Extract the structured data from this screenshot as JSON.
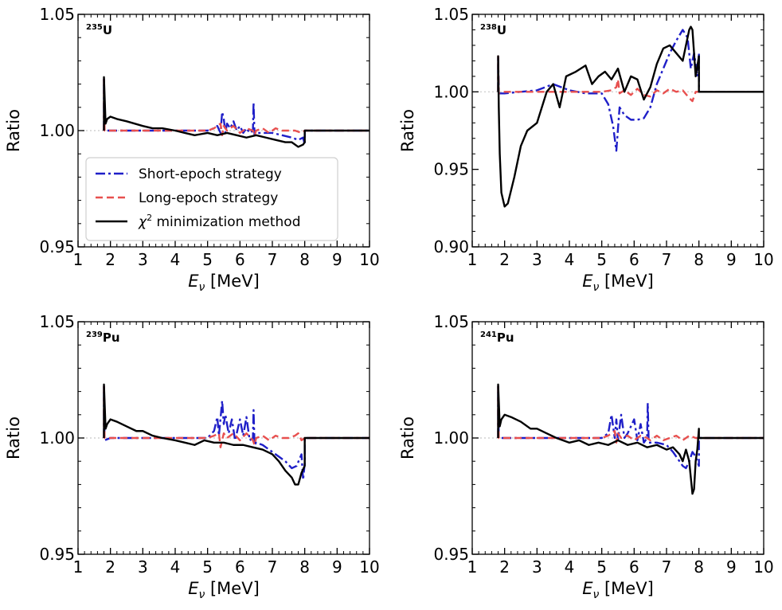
{
  "legend": [
    {
      "key": "short",
      "label": "Short-epoch strategy",
      "color": "#1f1fc8",
      "dash": "dashdot"
    },
    {
      "key": "long",
      "label": "Long-epoch strategy",
      "color": "#e8504f",
      "dash": "dashed"
    },
    {
      "key": "chi2",
      "label_prefix": "χ",
      "label_sup": "2",
      "label_suffix": " minimization method",
      "color": "#000000",
      "dash": "solid"
    }
  ],
  "chart_data": [
    {
      "type": "line",
      "title_sup": "235",
      "title_main": "U",
      "xlabel_main": "E",
      "xlabel_sub": "ν",
      "xlabel_unit": " [MeV]",
      "ylabel": "Ratio",
      "xlim": [
        1,
        10
      ],
      "ylim": [
        0.95,
        1.05
      ],
      "xticks": [
        1,
        2,
        3,
        4,
        5,
        6,
        7,
        8,
        9,
        10
      ],
      "yticks": [
        0.95,
        1.0,
        1.05
      ],
      "ytick_labels": [
        "0.95",
        "1.00",
        "1.05"
      ],
      "show_legend": true,
      "series": [
        {
          "key": "short",
          "x": [
            1.8,
            1.8,
            1.82,
            2.0,
            2.5,
            3.0,
            3.5,
            4.0,
            4.5,
            5.0,
            5.2,
            5.3,
            5.4,
            5.45,
            5.5,
            5.55,
            5.6,
            5.7,
            5.8,
            5.9,
            6.0,
            6.1,
            6.2,
            6.3,
            6.4,
            6.42,
            6.45,
            6.5,
            6.7,
            7.0,
            7.3,
            7.6,
            7.8,
            7.95,
            8.0,
            8.0,
            10.0
          ],
          "y": [
            1.0,
            1.023,
            1.0,
            1.0,
            1.0,
            1.0,
            1.0,
            1.0,
            1.0,
            1.0,
            1.001,
            1.002,
            0.999,
            1.008,
            1.005,
            0.999,
            1.003,
            1.001,
            1.004,
            1.0,
            1.002,
            0.999,
            1.001,
            0.999,
            1.0,
            1.012,
            0.998,
            0.999,
            0.999,
            0.999,
            0.998,
            0.997,
            0.996,
            0.997,
            0.994,
            1.0,
            1.0
          ]
        },
        {
          "key": "long",
          "x": [
            1.8,
            1.8,
            1.82,
            2.0,
            2.5,
            3.0,
            3.5,
            4.0,
            4.5,
            5.0,
            5.2,
            5.4,
            5.45,
            5.5,
            5.6,
            5.8,
            6.0,
            6.2,
            6.4,
            6.45,
            6.5,
            6.7,
            6.9,
            7.1,
            7.3,
            7.5,
            7.7,
            7.9,
            8.0,
            10.0
          ],
          "y": [
            1.0,
            1.023,
            1.0,
            1.0,
            1.0,
            1.0,
            1.0,
            1.0,
            1.0,
            1.0,
            1.001,
            1.003,
            0.998,
            1.002,
            1.0,
            1.002,
            0.999,
            1.001,
            1.0,
            0.998,
            1.0,
            1.001,
            0.999,
            1.001,
            1.0,
            1.0,
            1.0,
            0.999,
            1.0,
            1.0
          ]
        },
        {
          "key": "chi2",
          "x": [
            1.8,
            1.8,
            1.85,
            1.9,
            2.0,
            2.2,
            2.5,
            3.0,
            3.3,
            3.6,
            4.0,
            4.3,
            4.6,
            5.0,
            5.3,
            5.6,
            5.9,
            6.2,
            6.5,
            6.8,
            7.1,
            7.4,
            7.6,
            7.8,
            7.95,
            8.0,
            8.0,
            10.0
          ],
          "y": [
            1.0,
            1.023,
            1.003,
            1.005,
            1.006,
            1.005,
            1.004,
            1.002,
            1.001,
            1.001,
            1.0,
            0.999,
            0.998,
            0.999,
            0.998,
            0.999,
            0.998,
            0.997,
            0.998,
            0.997,
            0.996,
            0.995,
            0.995,
            0.993,
            0.994,
            0.995,
            1.0,
            1.0
          ]
        }
      ]
    },
    {
      "type": "line",
      "title_sup": "238",
      "title_main": "U",
      "xlabel_main": "E",
      "xlabel_sub": "ν",
      "xlabel_unit": " [MeV]",
      "ylabel": "Ratio",
      "xlim": [
        1,
        10
      ],
      "ylim": [
        0.9,
        1.05
      ],
      "xticks": [
        1,
        2,
        3,
        4,
        5,
        6,
        7,
        8,
        9,
        10
      ],
      "yticks": [
        0.9,
        0.95,
        1.0,
        1.05
      ],
      "ytick_labels": [
        "0.90",
        "0.95",
        "1.00",
        "1.05"
      ],
      "show_legend": false,
      "series": [
        {
          "key": "short",
          "x": [
            1.8,
            1.8,
            1.82,
            2.0,
            2.5,
            3.0,
            3.5,
            4.0,
            4.5,
            5.0,
            5.2,
            5.35,
            5.45,
            5.55,
            5.7,
            5.9,
            6.1,
            6.3,
            6.5,
            6.7,
            6.9,
            7.1,
            7.3,
            7.5,
            7.65,
            7.75,
            7.85,
            7.95,
            8.0,
            8.0,
            10.0
          ],
          "y": [
            1.0,
            1.023,
            0.999,
            0.999,
            1.0,
            1.001,
            1.005,
            1.001,
            0.999,
            0.999,
            0.992,
            0.978,
            0.962,
            0.99,
            0.985,
            0.982,
            0.982,
            0.983,
            0.99,
            1.005,
            1.015,
            1.025,
            1.033,
            1.04,
            1.035,
            1.015,
            1.025,
            1.01,
            1.025,
            1.0,
            1.0
          ]
        },
        {
          "key": "long",
          "x": [
            1.8,
            1.8,
            1.82,
            2.0,
            2.5,
            3.0,
            3.5,
            4.0,
            4.5,
            5.0,
            5.3,
            5.45,
            5.5,
            5.55,
            5.7,
            5.9,
            6.1,
            6.3,
            6.5,
            6.7,
            6.9,
            7.1,
            7.3,
            7.5,
            7.7,
            7.8,
            7.9,
            8.0,
            10.0
          ],
          "y": [
            1.0,
            1.023,
            0.999,
            1.0,
            1.0,
            1.0,
            1.0,
            1.0,
            1.0,
            1.0,
            1.001,
            1.003,
            1.008,
            0.999,
            1.001,
            0.998,
            1.002,
            0.998,
            0.997,
            1.001,
            0.999,
            1.002,
            1.0,
            1.001,
            0.996,
            0.994,
            1.0,
            1.0,
            1.0
          ]
        },
        {
          "key": "chi2",
          "x": [
            1.8,
            1.8,
            1.82,
            1.85,
            1.9,
            2.0,
            2.1,
            2.3,
            2.5,
            2.7,
            3.0,
            3.3,
            3.5,
            3.7,
            3.9,
            4.2,
            4.5,
            4.7,
            4.9,
            5.1,
            5.3,
            5.5,
            5.7,
            5.9,
            6.1,
            6.3,
            6.5,
            6.7,
            6.9,
            7.1,
            7.3,
            7.5,
            7.6,
            7.7,
            7.75,
            7.8,
            7.9,
            8.0,
            8.0,
            10.0
          ],
          "y": [
            1.0,
            1.023,
            0.99,
            0.96,
            0.935,
            0.926,
            0.928,
            0.945,
            0.965,
            0.975,
            0.98,
            1.0,
            1.005,
            0.99,
            1.01,
            1.013,
            1.017,
            1.005,
            1.01,
            1.013,
            1.008,
            1.015,
            1.0,
            1.01,
            1.008,
            0.995,
            1.003,
            1.018,
            1.028,
            1.03,
            1.025,
            1.02,
            1.03,
            1.04,
            1.042,
            1.04,
            1.01,
            1.023,
            1.0,
            1.0
          ]
        }
      ]
    },
    {
      "type": "line",
      "title_sup": "239",
      "title_main": "Pu",
      "xlabel_main": "E",
      "xlabel_sub": "ν",
      "xlabel_unit": " [MeV]",
      "ylabel": "Ratio",
      "xlim": [
        1,
        10
      ],
      "ylim": [
        0.95,
        1.05
      ],
      "xticks": [
        1,
        2,
        3,
        4,
        5,
        6,
        7,
        8,
        9,
        10
      ],
      "yticks": [
        0.95,
        1.0,
        1.05
      ],
      "ytick_labels": [
        "0.95",
        "1.00",
        "1.05"
      ],
      "show_legend": false,
      "series": [
        {
          "key": "short",
          "x": [
            1.8,
            1.8,
            1.82,
            2.0,
            2.5,
            3.0,
            3.5,
            4.0,
            4.5,
            5.0,
            5.2,
            5.3,
            5.35,
            5.45,
            5.5,
            5.55,
            5.65,
            5.75,
            5.85,
            6.0,
            6.1,
            6.2,
            6.3,
            6.4,
            6.42,
            6.45,
            6.5,
            6.7,
            7.0,
            7.2,
            7.4,
            7.6,
            7.75,
            7.9,
            7.95,
            8.0,
            8.0,
            10.0
          ],
          "y": [
            1.0,
            1.023,
            0.999,
            1.0,
            1.0,
            1.0,
            1.0,
            1.0,
            1.0,
            1.0,
            1.003,
            1.009,
            1.001,
            1.016,
            1.006,
            1.01,
            1.002,
            1.008,
            0.999,
            1.008,
            1.001,
            1.009,
            0.999,
            1.0,
            1.012,
            0.997,
            0.998,
            0.997,
            0.994,
            0.992,
            0.99,
            0.987,
            0.988,
            0.993,
            0.982,
            0.989,
            1.0,
            1.0
          ]
        },
        {
          "key": "long",
          "x": [
            1.8,
            1.8,
            1.82,
            2.0,
            2.5,
            3.0,
            3.5,
            4.0,
            4.5,
            5.0,
            5.2,
            5.35,
            5.4,
            5.5,
            5.6,
            5.8,
            6.0,
            6.2,
            6.4,
            6.45,
            6.5,
            6.7,
            6.9,
            7.1,
            7.3,
            7.5,
            7.7,
            7.8,
            7.9,
            8.0,
            10.0
          ],
          "y": [
            1.0,
            1.023,
            1.0,
            1.0,
            1.0,
            1.0,
            1.0,
            1.0,
            1.0,
            1.0,
            1.001,
            1.002,
            0.996,
            1.002,
            1.0,
            1.002,
            0.999,
            1.002,
            0.999,
            0.997,
            1.0,
            1.001,
            0.999,
            1.001,
            1.0,
            1.0,
            1.001,
            1.002,
            0.999,
            1.0,
            1.0
          ]
        },
        {
          "key": "chi2",
          "x": [
            1.8,
            1.8,
            1.85,
            1.9,
            2.0,
            2.2,
            2.5,
            2.8,
            3.0,
            3.3,
            3.6,
            4.0,
            4.3,
            4.6,
            4.9,
            5.2,
            5.5,
            5.8,
            6.1,
            6.4,
            6.7,
            7.0,
            7.2,
            7.4,
            7.6,
            7.7,
            7.8,
            7.9,
            8.0,
            8.0,
            10.0
          ],
          "y": [
            1.0,
            1.023,
            1.004,
            1.006,
            1.008,
            1.007,
            1.005,
            1.003,
            1.003,
            1.001,
            1.0,
            0.999,
            0.998,
            0.997,
            0.999,
            0.998,
            0.998,
            0.997,
            0.997,
            0.996,
            0.995,
            0.993,
            0.99,
            0.986,
            0.983,
            0.98,
            0.98,
            0.985,
            0.988,
            1.0,
            1.0
          ]
        }
      ]
    },
    {
      "type": "line",
      "title_sup": "241",
      "title_main": "Pu",
      "xlabel_main": "E",
      "xlabel_sub": "ν",
      "xlabel_unit": " [MeV]",
      "ylabel": "Ratio",
      "xlim": [
        1,
        10
      ],
      "ylim": [
        0.95,
        1.05
      ],
      "xticks": [
        1,
        2,
        3,
        4,
        5,
        6,
        7,
        8,
        9,
        10
      ],
      "yticks": [
        0.95,
        1.0,
        1.05
      ],
      "ytick_labels": [
        "0.95",
        "1.00",
        "1.05"
      ],
      "show_legend": false,
      "series": [
        {
          "key": "short",
          "x": [
            1.8,
            1.8,
            1.82,
            2.0,
            2.5,
            3.0,
            3.5,
            4.0,
            4.5,
            5.0,
            5.2,
            5.3,
            5.4,
            5.45,
            5.5,
            5.6,
            5.7,
            5.8,
            6.0,
            6.1,
            6.2,
            6.3,
            6.4,
            6.42,
            6.45,
            6.5,
            6.7,
            7.0,
            7.2,
            7.4,
            7.5,
            7.6,
            7.7,
            7.8,
            7.9,
            8.0,
            8.0,
            10.0
          ],
          "y": [
            1.0,
            1.023,
            1.0,
            1.0,
            1.0,
            1.0,
            1.0,
            1.0,
            1.0,
            1.0,
            1.002,
            1.01,
            1.0,
            1.008,
            0.999,
            1.01,
            1.0,
            1.002,
            1.008,
            0.999,
            1.006,
            0.998,
            1.0,
            1.015,
            0.998,
            0.998,
            0.998,
            0.997,
            0.994,
            0.99,
            0.988,
            0.987,
            0.99,
            0.994,
            0.992,
            0.988,
            1.0,
            1.0
          ]
        },
        {
          "key": "long",
          "x": [
            1.8,
            1.8,
            1.82,
            2.0,
            2.5,
            3.0,
            3.5,
            4.0,
            4.5,
            5.0,
            5.2,
            5.4,
            5.45,
            5.5,
            5.6,
            5.8,
            6.0,
            6.2,
            6.4,
            6.5,
            6.7,
            6.9,
            7.1,
            7.3,
            7.5,
            7.7,
            7.9,
            8.0,
            10.0
          ],
          "y": [
            1.0,
            1.023,
            1.0,
            1.0,
            1.0,
            1.0,
            1.0,
            1.0,
            1.0,
            1.0,
            1.001,
            1.003,
            0.998,
            1.002,
            1.0,
            1.001,
            0.999,
            1.001,
            1.0,
            0.999,
            1.001,
            0.999,
            1.0,
            1.001,
            0.999,
            1.001,
            1.0,
            1.0,
            1.0
          ]
        },
        {
          "key": "chi2",
          "x": [
            1.8,
            1.8,
            1.85,
            1.9,
            2.0,
            2.2,
            2.5,
            2.8,
            3.0,
            3.3,
            3.6,
            4.0,
            4.3,
            4.6,
            4.9,
            5.2,
            5.5,
            5.8,
            6.1,
            6.4,
            6.7,
            7.0,
            7.2,
            7.4,
            7.5,
            7.6,
            7.7,
            7.75,
            7.8,
            7.85,
            7.9,
            7.95,
            8.0,
            8.0,
            10.0
          ],
          "y": [
            1.0,
            1.023,
            1.005,
            1.008,
            1.01,
            1.009,
            1.007,
            1.004,
            1.004,
            1.002,
            1.0,
            0.998,
            0.999,
            0.997,
            0.998,
            0.997,
            0.999,
            0.997,
            0.998,
            0.996,
            0.997,
            0.995,
            0.996,
            0.993,
            0.99,
            0.995,
            0.99,
            0.983,
            0.976,
            0.978,
            0.99,
            0.995,
            1.004,
            1.0,
            1.0
          ]
        }
      ]
    }
  ]
}
